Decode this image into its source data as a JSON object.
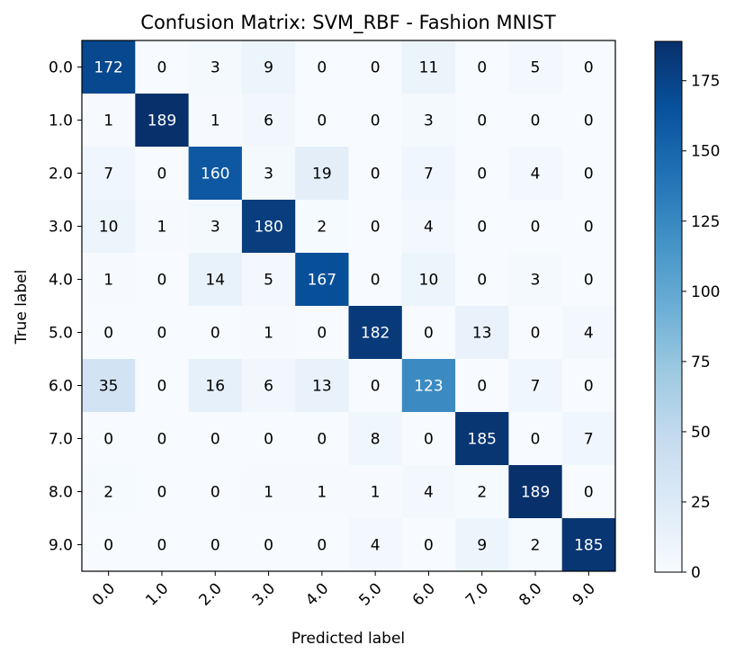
{
  "chart_data": {
    "type": "heatmap",
    "title": "Confusion Matrix: SVM_RBF - Fashion MNIST",
    "xlabel": "Predicted label",
    "ylabel": "True label",
    "x_categories": [
      "0.0",
      "1.0",
      "2.0",
      "3.0",
      "4.0",
      "5.0",
      "6.0",
      "7.0",
      "8.0",
      "9.0"
    ],
    "y_categories": [
      "0.0",
      "1.0",
      "2.0",
      "3.0",
      "4.0",
      "5.0",
      "6.0",
      "7.0",
      "8.0",
      "9.0"
    ],
    "values": [
      [
        172,
        0,
        3,
        9,
        0,
        0,
        11,
        0,
        5,
        0
      ],
      [
        1,
        189,
        1,
        6,
        0,
        0,
        3,
        0,
        0,
        0
      ],
      [
        7,
        0,
        160,
        3,
        19,
        0,
        7,
        0,
        4,
        0
      ],
      [
        10,
        1,
        3,
        180,
        2,
        0,
        4,
        0,
        0,
        0
      ],
      [
        1,
        0,
        14,
        5,
        167,
        0,
        10,
        0,
        3,
        0
      ],
      [
        0,
        0,
        0,
        1,
        0,
        182,
        0,
        13,
        0,
        4
      ],
      [
        35,
        0,
        16,
        6,
        13,
        0,
        123,
        0,
        7,
        0
      ],
      [
        0,
        0,
        0,
        0,
        0,
        8,
        0,
        185,
        0,
        7
      ],
      [
        2,
        0,
        0,
        1,
        1,
        1,
        4,
        2,
        189,
        0
      ],
      [
        0,
        0,
        0,
        0,
        0,
        4,
        0,
        9,
        2,
        185
      ]
    ],
    "colormap": "Blues",
    "color_range": [
      0,
      189
    ],
    "colorbar_ticks": [
      0,
      25,
      50,
      75,
      100,
      125,
      150,
      175
    ],
    "text_color_dark": "#000000",
    "text_color_light": "#ffffff",
    "grid": false
  }
}
